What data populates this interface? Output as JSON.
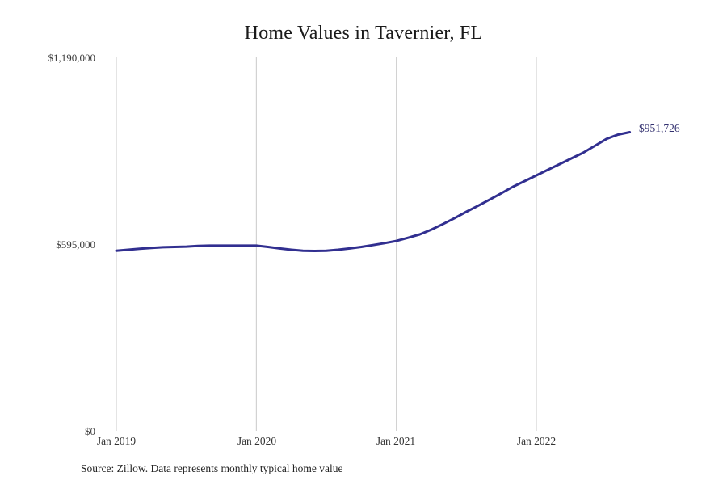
{
  "chart_data": {
    "type": "line",
    "title": "Home Values in Tavernier, FL",
    "xlabel": "",
    "ylabel": "",
    "ylim": [
      0,
      1190000
    ],
    "grid": "vertical-only",
    "line_color": "#312f90",
    "grid_color": "#c9c9c9",
    "end_label": "$951,726",
    "end_value": 951726,
    "x": [
      "2019-01",
      "2019-02",
      "2019-03",
      "2019-04",
      "2019-05",
      "2019-06",
      "2019-07",
      "2019-08",
      "2019-09",
      "2019-10",
      "2019-11",
      "2019-12",
      "2020-01",
      "2020-02",
      "2020-03",
      "2020-04",
      "2020-05",
      "2020-06",
      "2020-07",
      "2020-08",
      "2020-09",
      "2020-10",
      "2020-11",
      "2020-12",
      "2021-01",
      "2021-02",
      "2021-03",
      "2021-04",
      "2021-05",
      "2021-06",
      "2021-07",
      "2021-08",
      "2021-09",
      "2021-10",
      "2021-11",
      "2021-12",
      "2022-01",
      "2022-02",
      "2022-03",
      "2022-04",
      "2022-05",
      "2022-06",
      "2022-07",
      "2022-08",
      "2022-09"
    ],
    "values": [
      574000,
      577000,
      580000,
      583000,
      585000,
      586000,
      587000,
      589000,
      590000,
      590000,
      590000,
      590000,
      590000,
      586000,
      581000,
      577000,
      574000,
      573000,
      574000,
      577000,
      581000,
      586000,
      592000,
      598000,
      605000,
      615000,
      626000,
      641000,
      659000,
      678000,
      698000,
      717000,
      737000,
      757000,
      778000,
      796000,
      814000,
      832000,
      850000,
      868000,
      886000,
      908000,
      930000,
      944000,
      951726
    ],
    "yticks": [
      {
        "label": "$1,190,000",
        "value": 1190000
      },
      {
        "label": "$595,000",
        "value": 595000
      },
      {
        "label": "$0",
        "value": 0
      }
    ],
    "xticks": [
      {
        "label": "Jan 2019",
        "month_index": 0
      },
      {
        "label": "Jan 2020",
        "month_index": 12
      },
      {
        "label": "Jan 2021",
        "month_index": 24
      },
      {
        "label": "Jan 2022",
        "month_index": 36
      }
    ]
  },
  "source_note": "Source: Zillow. Data represents monthly typical home value"
}
